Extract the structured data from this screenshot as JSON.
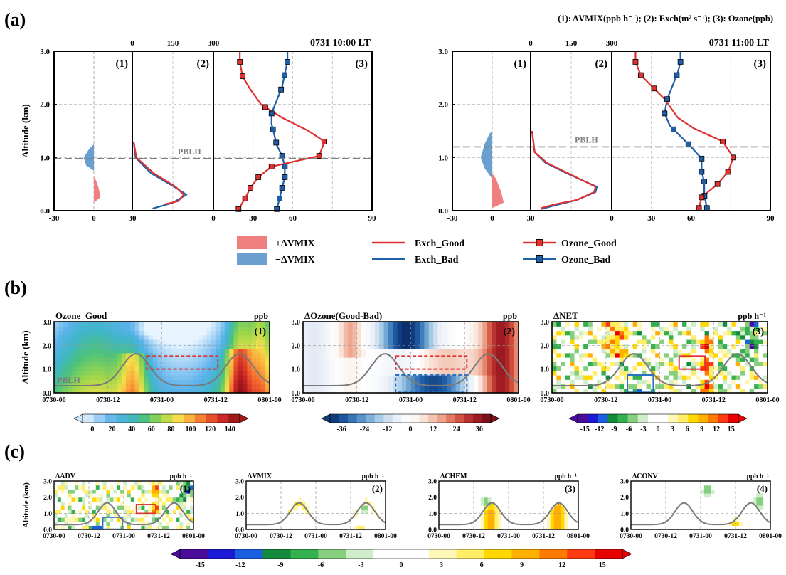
{
  "panel_labels": [
    "(a)",
    "(b)",
    "(c)"
  ],
  "legend_header": "(1): ΔVMIX(ppb h⁻¹); (2): Exch(m² s⁻¹); (3): Ozone(ppb)",
  "colors": {
    "good": "#e03030",
    "bad": "#1f5fa8",
    "pos_fill": "#f08080",
    "neg_fill": "#6a9fcf",
    "pblh": "#808080"
  },
  "chart_data": [
    {
      "type": "line",
      "id": "a-left",
      "title": "0731 10:00 LT",
      "ylabel": "Altitude (km)",
      "ylim": [
        0,
        3
      ],
      "yticks": [
        "0.0",
        "1.0",
        "2.0",
        "3.0"
      ],
      "pblh": 0.98,
      "pblh_label": "PBLH",
      "sub1": {
        "label": "(1)",
        "xlim": [
          -30,
          30
        ],
        "xticks": [
          "-30",
          "0"
        ],
        "pos": [
          [
            0,
            0.15
          ],
          [
            5,
            0.25
          ],
          [
            4,
            0.4
          ],
          [
            2,
            0.55
          ],
          [
            0,
            0.65
          ]
        ],
        "neg": [
          [
            0,
            0.75
          ],
          [
            -6,
            0.85
          ],
          [
            -8,
            1.0
          ],
          [
            -4,
            1.15
          ],
          [
            0,
            1.25
          ]
        ]
      },
      "sub2": {
        "label": "(2)",
        "xlim": [
          0,
          300
        ],
        "xticks": [
          "30",
          "0",
          "150",
          "300"
        ],
        "good": [
          [
            5,
            1.3
          ],
          [
            15,
            1.0
          ],
          [
            80,
            0.7
          ],
          [
            160,
            0.45
          ],
          [
            190,
            0.3
          ],
          [
            170,
            0.18
          ],
          [
            120,
            0.12
          ]
        ],
        "bad": [
          [
            5,
            1.3
          ],
          [
            12,
            1.0
          ],
          [
            70,
            0.7
          ],
          [
            155,
            0.45
          ],
          [
            200,
            0.3
          ],
          [
            150,
            0.15
          ],
          [
            75,
            0.04
          ]
        ]
      },
      "sub3": {
        "label": "(3)",
        "xlim": [
          30,
          90
        ],
        "xticks": [
          "0",
          "30",
          "60",
          "90"
        ],
        "good": [
          [
            39.5,
            0.03
          ],
          [
            42,
            0.23
          ],
          [
            44,
            0.43
          ],
          [
            47,
            0.63
          ],
          [
            52,
            0.83
          ],
          [
            70,
            1.03
          ],
          [
            72,
            1.3
          ],
          [
            66,
            1.5
          ],
          [
            56,
            1.75
          ],
          [
            48,
            2.0
          ],
          [
            44,
            2.28
          ],
          [
            41,
            2.53
          ],
          [
            40,
            2.8
          ],
          [
            40,
            3.0
          ]
        ],
        "bad": [
          [
            54,
            0.03
          ],
          [
            55,
            0.23
          ],
          [
            56,
            0.43
          ],
          [
            57,
            0.63
          ],
          [
            57,
            0.83
          ],
          [
            56,
            1.03
          ],
          [
            54,
            1.23
          ],
          [
            53,
            1.43
          ],
          [
            52,
            1.63
          ],
          [
            52,
            1.83
          ],
          [
            54,
            2.08
          ],
          [
            56,
            2.33
          ],
          [
            57,
            2.58
          ],
          [
            58,
            2.8
          ],
          [
            58,
            3.0
          ]
        ],
        "good_markers": [
          0.03,
          0.23,
          0.43,
          0.63,
          0.83,
          1.03,
          1.3,
          1.95,
          2.53,
          2.8
        ],
        "bad_markers": [
          0.03,
          0.23,
          0.43,
          0.63,
          0.83,
          1.03,
          1.28,
          1.53,
          1.83,
          2.28,
          2.55,
          2.8
        ]
      }
    },
    {
      "type": "line",
      "id": "a-right",
      "title": "0731 11:00 LT",
      "ylim": [
        0,
        3
      ],
      "yticks": [
        "0.0",
        "1.0",
        "2.0",
        "3.0"
      ],
      "pblh": 1.2,
      "pblh_label": "PBLH",
      "sub1": {
        "label": "(1)",
        "xlim": [
          -30,
          30
        ],
        "xticks": [
          "-30",
          "0"
        ],
        "pos": [
          [
            0,
            0.05
          ],
          [
            9,
            0.15
          ],
          [
            7,
            0.35
          ],
          [
            3,
            0.6
          ],
          [
            0,
            0.7
          ]
        ],
        "neg": [
          [
            0,
            0.6
          ],
          [
            -6,
            0.8
          ],
          [
            -9,
            1.0
          ],
          [
            -6,
            1.25
          ],
          [
            -2,
            1.45
          ],
          [
            0,
            1.5
          ]
        ]
      },
      "sub2": {
        "label": "(2)",
        "xlim": [
          0,
          300
        ],
        "xticks": [
          "30",
          "0",
          "150",
          "300"
        ],
        "good": [
          [
            5,
            1.5
          ],
          [
            15,
            1.1
          ],
          [
            60,
            0.9
          ],
          [
            140,
            0.7
          ],
          [
            200,
            0.55
          ],
          [
            240,
            0.45
          ],
          [
            235,
            0.35
          ],
          [
            170,
            0.2
          ],
          [
            90,
            0.12
          ],
          [
            40,
            0.05
          ]
        ],
        "bad": [
          [
            5,
            1.5
          ],
          [
            15,
            1.1
          ],
          [
            55,
            0.9
          ],
          [
            135,
            0.7
          ],
          [
            200,
            0.55
          ],
          [
            245,
            0.45
          ],
          [
            240,
            0.35
          ],
          [
            170,
            0.2
          ],
          [
            90,
            0.1
          ],
          [
            38,
            0.03
          ]
        ]
      },
      "sub3": {
        "label": "(3)",
        "xlim": [
          30,
          90
        ],
        "xticks": [
          "0",
          "30",
          "60",
          "90"
        ],
        "good": [
          [
            63,
            0.05
          ],
          [
            64,
            0.25
          ],
          [
            70,
            0.5
          ],
          [
            74,
            0.73
          ],
          [
            76,
            1.0
          ],
          [
            72,
            1.3
          ],
          [
            61,
            1.55
          ],
          [
            55,
            1.75
          ],
          [
            50,
            2.1
          ],
          [
            46,
            2.3
          ],
          [
            41,
            2.55
          ],
          [
            39,
            2.8
          ],
          [
            39,
            3.0
          ]
        ],
        "bad": [
          [
            66,
            0.05
          ],
          [
            65,
            0.3
          ],
          [
            65,
            0.55
          ],
          [
            64,
            0.73
          ],
          [
            64,
            0.98
          ],
          [
            60,
            1.2
          ],
          [
            56,
            1.4
          ],
          [
            52,
            1.6
          ],
          [
            50,
            1.83
          ],
          [
            51,
            2.1
          ],
          [
            53,
            2.35
          ],
          [
            55,
            2.6
          ],
          [
            56,
            2.8
          ],
          [
            56,
            3.0
          ]
        ],
        "good_markers": [
          0.05,
          0.25,
          0.5,
          0.73,
          1.0,
          1.3,
          2.3,
          2.55,
          2.8
        ],
        "bad_markers": [
          0.05,
          0.28,
          0.55,
          0.73,
          0.98,
          1.25,
          1.53,
          1.83,
          2.1,
          2.55,
          2.8
        ]
      }
    }
  ],
  "legend_a": [
    {
      "label": "+ΔVMIX",
      "kind": "pos"
    },
    {
      "label": "−ΔVMIX",
      "kind": "neg"
    },
    {
      "label": "Exch_Good",
      "kind": "good-line"
    },
    {
      "label": "Exch_Bad",
      "kind": "bad-line"
    },
    {
      "label": "Ozone_Good",
      "kind": "good-marker"
    },
    {
      "label": "Ozone_Bad",
      "kind": "bad-marker"
    }
  ],
  "b_panels": [
    {
      "title": "Ozone_Good",
      "unit": "ppb",
      "num": "(1)",
      "kind": "ozone",
      "pblh_label": "PBLH",
      "xticks": [
        "0730-00",
        "0730-12",
        "0731-00",
        "0731-12",
        "0801-00"
      ],
      "yticks": [
        "0.0",
        "1.0",
        "2.0",
        "3.0"
      ],
      "cbar": [
        "0",
        "20",
        "40",
        "60",
        "80",
        "100",
        "120",
        "140"
      ]
    },
    {
      "title": "ΔOzone(Good-Bad)",
      "unit": "ppb",
      "num": "(2)",
      "kind": "dozone",
      "xticks": [
        "0730-00",
        "0730-12",
        "0731-00",
        "0731-12",
        "0801-00"
      ],
      "yticks": [
        "0.0",
        "1.0",
        "2.0",
        "3.0"
      ],
      "cbar": [
        "-36",
        "-24",
        "-12",
        "0",
        "12",
        "24",
        "36"
      ]
    },
    {
      "title": "ΔNET",
      "unit": "ppb h⁻¹",
      "num": "(3)",
      "kind": "net",
      "xticks": [
        "0730-00",
        "0730-12",
        "0731-00",
        "0731-12",
        "0801-00"
      ],
      "yticks": [
        "0.0",
        "1.0",
        "2.0",
        "3.0"
      ],
      "cbar": [
        "-15",
        "-12",
        "-9",
        "-6",
        "-3",
        "0",
        "3",
        "6",
        "9",
        "12",
        "15"
      ]
    }
  ],
  "c_panels": [
    {
      "title": "ΔADV",
      "unit": "ppb h⁻¹",
      "num": "(1)"
    },
    {
      "title": "ΔVMIX",
      "unit": "ppb h⁻¹",
      "num": "(2)"
    },
    {
      "title": "ΔCHEM",
      "unit": "ppb h⁻¹",
      "num": "(3)"
    },
    {
      "title": "ΔCONV",
      "unit": "ppb h⁻¹",
      "num": "(4)"
    }
  ],
  "c_ylabel": "Altitude (km)",
  "c_xticks": [
    "0730-00",
    "0730-12",
    "0731-00",
    "0731-12",
    "0801-00"
  ],
  "c_yticks": [
    "0.0",
    "1.0",
    "2.0",
    "3.0"
  ],
  "c_cbar": [
    "-15",
    "-12",
    "-9",
    "-6",
    "-3",
    "0",
    "3",
    "6",
    "9",
    "12",
    "15"
  ]
}
